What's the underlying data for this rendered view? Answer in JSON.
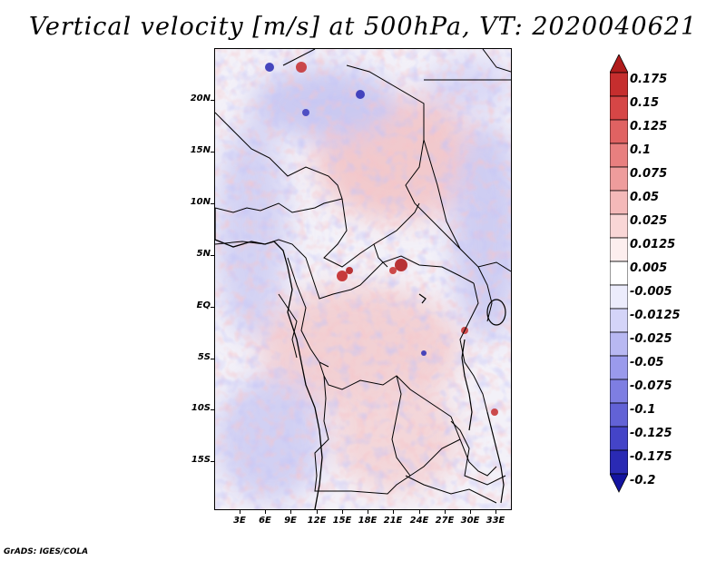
{
  "title": "Vertical velocity [m/s] at 500hPa, VT: 2020040621",
  "footer": "GrADS: IGES/COLA",
  "lat_labels": [
    "20N",
    "15N",
    "10N",
    "5N",
    "EQ",
    "5S",
    "10S",
    "15S"
  ],
  "lon_labels": [
    "3E",
    "6E",
    "9E",
    "12E",
    "15E",
    "18E",
    "21E",
    "24E",
    "27E",
    "30E",
    "33E"
  ],
  "colorbar": {
    "levels": [
      "0.175",
      "0.15",
      "0.125",
      "0.1",
      "0.075",
      "0.05",
      "0.025",
      "0.0125",
      "0.005",
      "-0.005",
      "-0.0125",
      "-0.025",
      "-0.05",
      "-0.075",
      "-0.1",
      "-0.125",
      "-0.175",
      "-0.2"
    ],
    "colors": [
      "#b01c1c",
      "#c62e2e",
      "#d64646",
      "#e06262",
      "#e87f7f",
      "#ee9c9c",
      "#f4b9b9",
      "#f9d6d6",
      "#fdeeee",
      "#ffffff",
      "#ececfc",
      "#d4d4f8",
      "#b8b8f2",
      "#9a9aec",
      "#7e7ee2",
      "#6262d6",
      "#4444c8",
      "#2a2ab4",
      "#1414a0"
    ]
  },
  "map_palette": {
    "background": "#f3f1f8",
    "warm": "#f1b3b3",
    "warm_strong": "#d64c4c",
    "cool": "#b8b8ef",
    "cool_strong": "#5a5ad0",
    "borders": "#000000"
  }
}
